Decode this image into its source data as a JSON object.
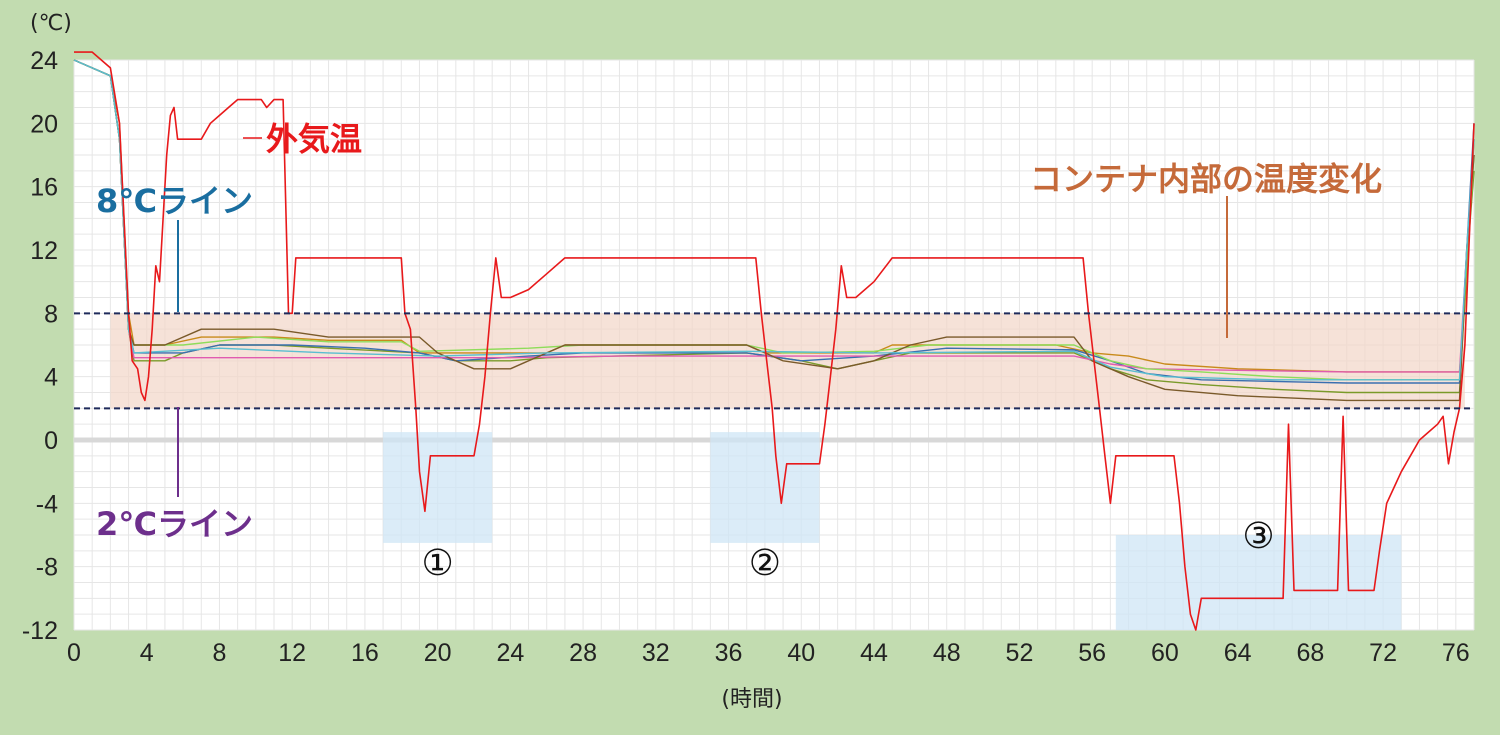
{
  "chart_data": {
    "type": "line",
    "y_unit": "(℃)",
    "xlabel": "(時間)",
    "xlim": [
      0,
      77
    ],
    "ylim": [
      -12,
      24
    ],
    "x_ticks": [
      0,
      4,
      8,
      12,
      16,
      20,
      24,
      28,
      32,
      36,
      40,
      44,
      48,
      52,
      56,
      60,
      64,
      68,
      72,
      76
    ],
    "y_ticks": [
      24,
      20,
      16,
      12,
      8,
      4,
      0,
      -4,
      -8,
      -12
    ],
    "grid": true,
    "reference_lines": [
      {
        "label": "8℃ライン",
        "y": 8,
        "color": "#1a6ea0"
      },
      {
        "label": "2℃ライン",
        "y": 2,
        "color": "#6d2f8c"
      }
    ],
    "band": {
      "label": "コンテナ内部の温度変化",
      "y_range": [
        2,
        8
      ],
      "x_range": [
        2,
        76.5
      ],
      "color": "#c56a3a"
    },
    "series": [
      {
        "name": "外気温",
        "color": "#e8191b",
        "width": 1.6,
        "points": [
          [
            0,
            24.5
          ],
          [
            1,
            24.5
          ],
          [
            2,
            23.5
          ],
          [
            2.5,
            20
          ],
          [
            3,
            8
          ],
          [
            3.2,
            5
          ],
          [
            3.5,
            4.5
          ],
          [
            3.7,
            3
          ],
          [
            3.9,
            2.5
          ],
          [
            4.1,
            4
          ],
          [
            4.3,
            7
          ],
          [
            4.5,
            11
          ],
          [
            4.7,
            10
          ],
          [
            4.9,
            14
          ],
          [
            5.1,
            18
          ],
          [
            5.3,
            20.5
          ],
          [
            5.5,
            21
          ],
          [
            5.7,
            19
          ],
          [
            6,
            19
          ],
          [
            6.5,
            19
          ],
          [
            7,
            19
          ],
          [
            7.5,
            20
          ],
          [
            8,
            20.5
          ],
          [
            8.5,
            21
          ],
          [
            9,
            21.5
          ],
          [
            9.5,
            21.5
          ],
          [
            10,
            21.5
          ],
          [
            10.3,
            21.5
          ],
          [
            10.6,
            21
          ],
          [
            11,
            21.5
          ],
          [
            11.5,
            21.5
          ],
          [
            11.8,
            8
          ],
          [
            12,
            8
          ],
          [
            12.2,
            11.5
          ],
          [
            18,
            11.5
          ],
          [
            18.2,
            8
          ],
          [
            18.5,
            7
          ],
          [
            18.8,
            2
          ],
          [
            19,
            -2
          ],
          [
            19.3,
            -4.5
          ],
          [
            19.6,
            -1
          ],
          [
            22,
            -1
          ],
          [
            22.3,
            1
          ],
          [
            22.6,
            4
          ],
          [
            22.9,
            8
          ],
          [
            23.2,
            11.5
          ],
          [
            23.5,
            9
          ],
          [
            24,
            9
          ],
          [
            25,
            9.5
          ],
          [
            26,
            10.5
          ],
          [
            27,
            11.5
          ],
          [
            37.5,
            11.5
          ],
          [
            37.8,
            8
          ],
          [
            38.1,
            5
          ],
          [
            38.4,
            2
          ],
          [
            38.6,
            -1
          ],
          [
            38.9,
            -4
          ],
          [
            39.2,
            -1.5
          ],
          [
            41,
            -1.5
          ],
          [
            41.3,
            1
          ],
          [
            41.6,
            4
          ],
          [
            41.9,
            7
          ],
          [
            42.2,
            11
          ],
          [
            42.5,
            9
          ],
          [
            43,
            9
          ],
          [
            44,
            10
          ],
          [
            45,
            11.5
          ],
          [
            55.5,
            11.5
          ],
          [
            55.8,
            8
          ],
          [
            56.1,
            5
          ],
          [
            56.4,
            2
          ],
          [
            56.7,
            -1
          ],
          [
            57,
            -4
          ],
          [
            57.3,
            -1
          ],
          [
            60.5,
            -1
          ],
          [
            60.8,
            -4
          ],
          [
            61.1,
            -8
          ],
          [
            61.4,
            -11
          ],
          [
            61.7,
            -12
          ],
          [
            62,
            -10
          ],
          [
            66.5,
            -10
          ],
          [
            66.8,
            1
          ],
          [
            67.1,
            -9.5
          ],
          [
            69.5,
            -9.5
          ],
          [
            69.8,
            1.5
          ],
          [
            70.1,
            -9.5
          ],
          [
            71.5,
            -9.5
          ],
          [
            71.8,
            -7
          ],
          [
            72.2,
            -4
          ],
          [
            72.6,
            -3
          ],
          [
            73,
            -2
          ],
          [
            73.5,
            -1
          ],
          [
            74,
            0
          ],
          [
            74.5,
            0.5
          ],
          [
            75,
            1
          ],
          [
            75.3,
            1.5
          ],
          [
            75.6,
            -1.5
          ],
          [
            75.9,
            0.5
          ],
          [
            76.2,
            2
          ],
          [
            76.5,
            6
          ],
          [
            77,
            20
          ]
        ]
      },
      {
        "name": "",
        "color": "#c88a1a",
        "width": 1.4,
        "points": [
          [
            0,
            24
          ],
          [
            2,
            23
          ],
          [
            2.5,
            20
          ],
          [
            3,
            8
          ],
          [
            3.3,
            6
          ],
          [
            5,
            6
          ],
          [
            7,
            6.5
          ],
          [
            11,
            6.5
          ],
          [
            14,
            6.3
          ],
          [
            18,
            6.3
          ],
          [
            19,
            5.5
          ],
          [
            26,
            5.5
          ],
          [
            27,
            6
          ],
          [
            37,
            6
          ],
          [
            38,
            5.5
          ],
          [
            44,
            5.5
          ],
          [
            45,
            6
          ],
          [
            54,
            6
          ],
          [
            56,
            5.5
          ],
          [
            58,
            5.3
          ],
          [
            60,
            4.8
          ],
          [
            64,
            4.5
          ],
          [
            70,
            4.3
          ],
          [
            76.2,
            4.3
          ],
          [
            76.6,
            10
          ],
          [
            77,
            19
          ]
        ]
      },
      {
        "name": "",
        "color": "#7a9a2a",
        "width": 1.4,
        "points": [
          [
            0,
            24
          ],
          [
            2,
            23
          ],
          [
            2.5,
            19
          ],
          [
            3,
            7
          ],
          [
            3.3,
            5
          ],
          [
            5,
            5
          ],
          [
            6,
            5.5
          ],
          [
            8,
            6
          ],
          [
            11,
            6
          ],
          [
            14,
            5.8
          ],
          [
            19,
            5.5
          ],
          [
            21,
            5
          ],
          [
            24,
            5
          ],
          [
            26,
            5.2
          ],
          [
            37,
            5.5
          ],
          [
            40,
            5
          ],
          [
            42,
            4.5
          ],
          [
            44,
            5
          ],
          [
            46,
            5.5
          ],
          [
            55,
            5.5
          ],
          [
            57,
            4.5
          ],
          [
            59,
            3.8
          ],
          [
            62,
            3.5
          ],
          [
            66,
            3.2
          ],
          [
            70,
            3
          ],
          [
            76.2,
            3
          ],
          [
            76.6,
            11
          ],
          [
            77,
            17
          ]
        ]
      },
      {
        "name": "",
        "color": "#3a6fb0",
        "width": 1.4,
        "points": [
          [
            0,
            24
          ],
          [
            2,
            23
          ],
          [
            2.5,
            19
          ],
          [
            3,
            7
          ],
          [
            3.3,
            5.5
          ],
          [
            6,
            5.5
          ],
          [
            8,
            6
          ],
          [
            12,
            6
          ],
          [
            16,
            5.8
          ],
          [
            19,
            5.5
          ],
          [
            21,
            5
          ],
          [
            25,
            5.3
          ],
          [
            28,
            5.5
          ],
          [
            37,
            5.5
          ],
          [
            40,
            5
          ],
          [
            44,
            5.3
          ],
          [
            48,
            5.8
          ],
          [
            55,
            5.7
          ],
          [
            57,
            5
          ],
          [
            59,
            4.2
          ],
          [
            62,
            3.8
          ],
          [
            66,
            3.7
          ],
          [
            70,
            3.6
          ],
          [
            76.2,
            3.6
          ],
          [
            76.6,
            12
          ],
          [
            77,
            20
          ]
        ]
      },
      {
        "name": "",
        "color": "#e05bb0",
        "width": 1.4,
        "points": [
          [
            0,
            24
          ],
          [
            2,
            23
          ],
          [
            2.5,
            19
          ],
          [
            3,
            7
          ],
          [
            3.3,
            5.2
          ],
          [
            10,
            5.2
          ],
          [
            14,
            5.2
          ],
          [
            20,
            5.2
          ],
          [
            24,
            5.2
          ],
          [
            30,
            5.3
          ],
          [
            36,
            5.3
          ],
          [
            40,
            5.3
          ],
          [
            44,
            5.3
          ],
          [
            50,
            5.3
          ],
          [
            55,
            5.3
          ],
          [
            57,
            4.8
          ],
          [
            59,
            4.5
          ],
          [
            64,
            4.4
          ],
          [
            70,
            4.3
          ],
          [
            76.2,
            4.3
          ],
          [
            76.6,
            12
          ],
          [
            77,
            18
          ]
        ]
      },
      {
        "name": "",
        "color": "#8fdc5a",
        "width": 1.4,
        "points": [
          [
            0,
            24
          ],
          [
            2,
            23
          ],
          [
            2.5,
            19
          ],
          [
            3,
            7
          ],
          [
            3.3,
            6
          ],
          [
            6,
            6
          ],
          [
            10,
            6.5
          ],
          [
            14,
            6.2
          ],
          [
            18,
            6.2
          ],
          [
            19,
            5.6
          ],
          [
            25,
            5.8
          ],
          [
            28,
            6
          ],
          [
            37,
            6
          ],
          [
            39,
            5.5
          ],
          [
            44,
            5.6
          ],
          [
            47,
            6
          ],
          [
            55,
            6
          ],
          [
            57,
            5
          ],
          [
            59,
            4.5
          ],
          [
            62,
            4.3
          ],
          [
            66,
            4
          ],
          [
            70,
            3.8
          ],
          [
            76.2,
            3.8
          ],
          [
            76.6,
            11
          ],
          [
            77,
            18
          ]
        ]
      },
      {
        "name": "",
        "color": "#7a5a2a",
        "width": 1.4,
        "points": [
          [
            0,
            24
          ],
          [
            2,
            23
          ],
          [
            2.5,
            19
          ],
          [
            3,
            7
          ],
          [
            3.3,
            6
          ],
          [
            5,
            6
          ],
          [
            7,
            7
          ],
          [
            11,
            7
          ],
          [
            14,
            6.5
          ],
          [
            19,
            6.5
          ],
          [
            20,
            5.5
          ],
          [
            22,
            4.5
          ],
          [
            24,
            4.5
          ],
          [
            25,
            5
          ],
          [
            27,
            6
          ],
          [
            37,
            6
          ],
          [
            39,
            5
          ],
          [
            42,
            4.5
          ],
          [
            44,
            5
          ],
          [
            46,
            6
          ],
          [
            48,
            6.5
          ],
          [
            55,
            6.5
          ],
          [
            56,
            5
          ],
          [
            58,
            4
          ],
          [
            60,
            3.2
          ],
          [
            64,
            2.8
          ],
          [
            70,
            2.5
          ],
          [
            76.2,
            2.5
          ],
          [
            76.6,
            12
          ],
          [
            77,
            18
          ]
        ]
      },
      {
        "name": "",
        "color": "#5abed0",
        "width": 1.4,
        "points": [
          [
            0,
            24
          ],
          [
            2,
            23
          ],
          [
            2.5,
            19
          ],
          [
            3,
            7
          ],
          [
            3.3,
            5.5
          ],
          [
            8,
            5.8
          ],
          [
            14,
            5.5
          ],
          [
            20,
            5.3
          ],
          [
            26,
            5.5
          ],
          [
            37,
            5.6
          ],
          [
            44,
            5.5
          ],
          [
            55,
            5.6
          ],
          [
            57,
            4.6
          ],
          [
            60,
            4
          ],
          [
            66,
            3.8
          ],
          [
            76.2,
            3.8
          ],
          [
            76.6,
            12
          ],
          [
            77,
            19
          ]
        ]
      }
    ],
    "highlight_areas": [
      {
        "label": "①",
        "x_range": [
          17,
          23
        ],
        "y_range": [
          -6.5,
          0.5
        ]
      },
      {
        "label": "②",
        "x_range": [
          35,
          41
        ],
        "y_range": [
          -6.5,
          0.5
        ]
      },
      {
        "label": "③",
        "x_range": [
          57.3,
          73
        ],
        "y_range": [
          -12,
          -6
        ]
      }
    ]
  },
  "annotations": {
    "outdoor": "外気温",
    "line8": "8℃ライン",
    "line2": "2℃ライン",
    "container": "コンテナ内部の温度変化"
  }
}
